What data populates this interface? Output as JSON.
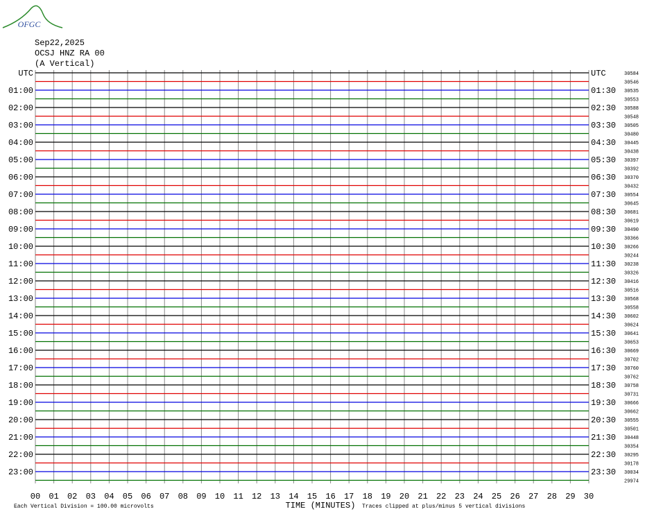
{
  "header": {
    "logo": "OFGC",
    "date": "Sep22,2025",
    "station": "OCSJ HNZ RA 00",
    "component": "(A Vertical)"
  },
  "left_labels": [
    "UTC",
    "01:00",
    "02:00",
    "03:00",
    "04:00",
    "05:00",
    "06:00",
    "07:00",
    "08:00",
    "09:00",
    "10:00",
    "11:00",
    "12:00",
    "13:00",
    "14:00",
    "15:00",
    "16:00",
    "17:00",
    "18:00",
    "19:00",
    "20:00",
    "21:00",
    "22:00",
    "23:00"
  ],
  "right_labels": [
    "UTC",
    "01:30",
    "02:30",
    "03:30",
    "04:30",
    "05:30",
    "06:30",
    "07:30",
    "08:30",
    "09:30",
    "10:30",
    "11:30",
    "12:30",
    "13:30",
    "14:30",
    "15:30",
    "16:30",
    "17:30",
    "18:30",
    "19:30",
    "20:30",
    "21:30",
    "22:30",
    "23:30"
  ],
  "trace_counts": [
    30584,
    30546,
    30535,
    30553,
    30588,
    30548,
    30505,
    30480,
    30445,
    30438,
    30397,
    30392,
    30370,
    30432,
    30554,
    30645,
    30681,
    30619,
    30490,
    30366,
    30266,
    30244,
    30238,
    30326,
    30416,
    30516,
    30568,
    30558,
    30602,
    30624,
    30641,
    30653,
    30669,
    30702,
    30760,
    30762,
    30758,
    30731,
    30666,
    30662,
    30555,
    30501,
    30448,
    30354,
    30295,
    30178,
    30034,
    29974
  ],
  "trace_colors": [
    "#000000",
    "#e00000",
    "#0000e0",
    "#007000"
  ],
  "x_labels": [
    "00",
    "01",
    "02",
    "03",
    "04",
    "05",
    "06",
    "07",
    "08",
    "09",
    "10",
    "11",
    "12",
    "13",
    "14",
    "15",
    "16",
    "17",
    "18",
    "19",
    "20",
    "21",
    "22",
    "23",
    "24",
    "25",
    "26",
    "27",
    "28",
    "29",
    "30"
  ],
  "x_title": "TIME (MINUTES)",
  "footer_left": "Each Vertical Division =  100.00 microvolts",
  "footer_right": "Traces clipped at plus/minus 5 vertical divisions"
}
